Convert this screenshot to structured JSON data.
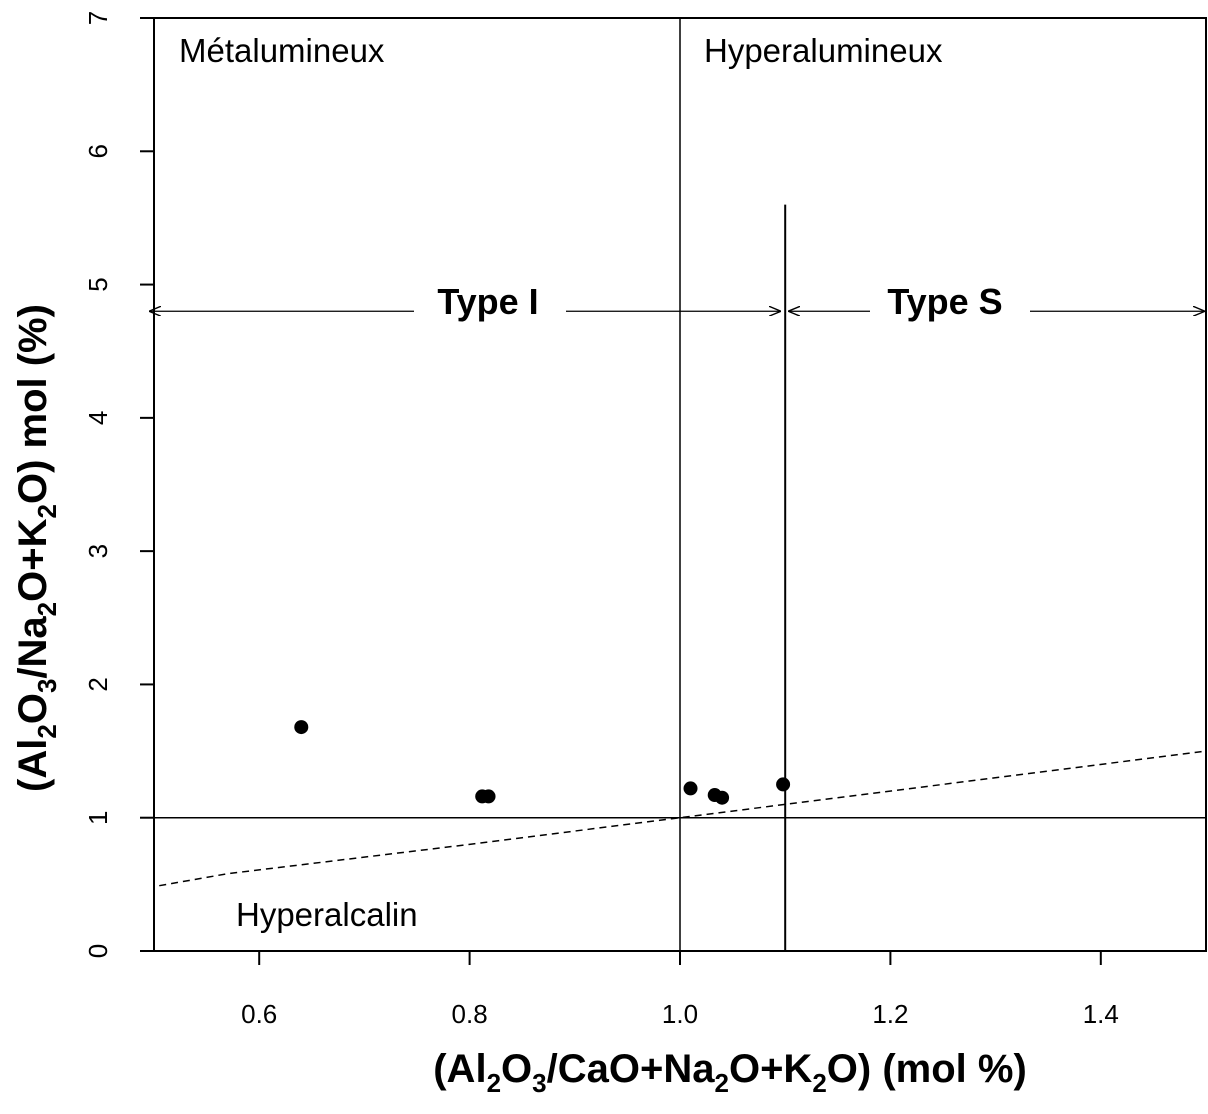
{
  "chart_data": {
    "type": "scatter",
    "xlabel": {
      "prefix": "(Al",
      "sub1": "2",
      "mid1": "O",
      "sub2": "3",
      "mid2": "/CaO+Na",
      "sub3": "2",
      "mid3": "O+K",
      "sub4": "2",
      "suffix": "O) (mol %)"
    },
    "ylabel": {
      "prefix": "(Al",
      "sub1": "2",
      "mid1": "O",
      "sub2": "3",
      "mid2": "/Na",
      "sub3": "2",
      "mid3": "O+K",
      "sub4": "2",
      "suffix": "O) mol (%)"
    },
    "xlim": [
      0.5,
      1.5
    ],
    "ylim": [
      0,
      7
    ],
    "x_ticks": [
      {
        "value": 0.6,
        "label": "0.6"
      },
      {
        "value": 0.8,
        "label": "0.8"
      },
      {
        "value": 1.0,
        "label": "1.0"
      },
      {
        "value": 1.2,
        "label": "1.2"
      },
      {
        "value": 1.4,
        "label": "1.4"
      }
    ],
    "y_ticks": [
      {
        "value": 0,
        "label": "0"
      },
      {
        "value": 1,
        "label": "1"
      },
      {
        "value": 2,
        "label": "2"
      },
      {
        "value": 3,
        "label": "3"
      },
      {
        "value": 4,
        "label": "4"
      },
      {
        "value": 5,
        "label": "5"
      },
      {
        "value": 6,
        "label": "6"
      },
      {
        "value": 7,
        "label": "7"
      }
    ],
    "grid": false,
    "points": [
      {
        "x": 0.64,
        "y": 1.68
      },
      {
        "x": 0.812,
        "y": 1.16
      },
      {
        "x": 0.818,
        "y": 1.16
      },
      {
        "x": 1.01,
        "y": 1.22
      },
      {
        "x": 1.033,
        "y": 1.17
      },
      {
        "x": 1.04,
        "y": 1.15
      },
      {
        "x": 1.098,
        "y": 1.25
      }
    ],
    "reference_lines": {
      "vertical_solid": {
        "x": 1.0,
        "y_from": 0,
        "y_to": 7
      },
      "horizontal_solid": {
        "y": 1.0,
        "x_from": 0.5,
        "x_to": 1.5
      },
      "vertical_type_boundary": {
        "x": 1.1,
        "y_from": 0,
        "y_to": 5.6
      },
      "dashed_curve": [
        {
          "x": 0.505,
          "y": 0.49
        },
        {
          "x": 0.57,
          "y": 0.58
        },
        {
          "x": 0.8,
          "y": 0.8
        },
        {
          "x": 1.0,
          "y": 1.0
        },
        {
          "x": 1.13,
          "y": 1.13
        },
        {
          "x": 1.5,
          "y": 1.5
        }
      ],
      "type_arrows_y": 4.8,
      "type_arrows": [
        {
          "x_from": 0.5,
          "x_to": 1.095
        },
        {
          "x_from": 1.1,
          "x_to": 1.5
        }
      ]
    },
    "annotations": {
      "metalumineux": "Métalumineux",
      "hyperalumineux": "Hyperalumineux",
      "hyperalcalin": "Hyperalcalin",
      "type_i": "Type I",
      "type_s": "Type S"
    },
    "colors": {
      "ink": "#000000",
      "background": "#ffffff"
    }
  }
}
